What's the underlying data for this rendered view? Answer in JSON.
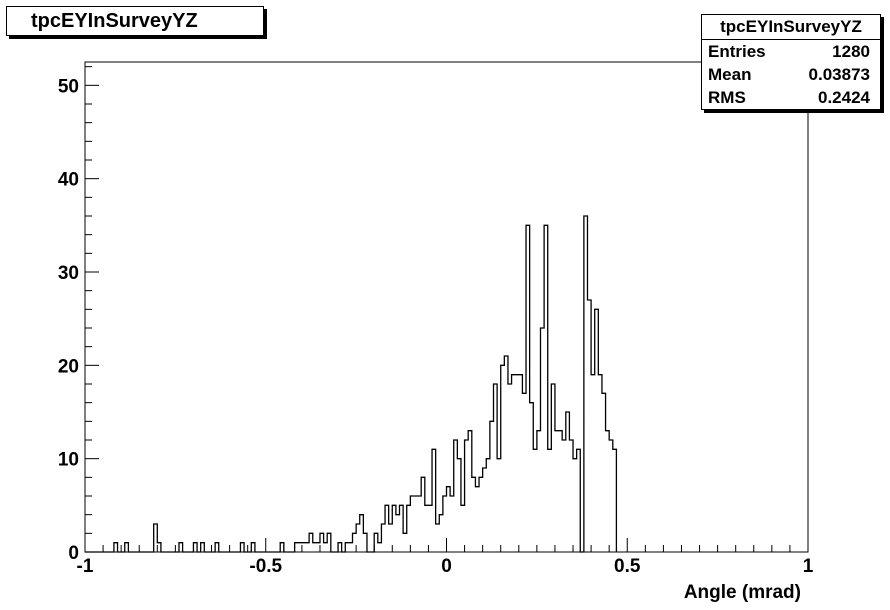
{
  "title": "tpcEYInSurveyYZ",
  "stats": {
    "name": "tpcEYInSurveyYZ",
    "rows": [
      {
        "label": "Entries",
        "value": "1280"
      },
      {
        "label": "Mean",
        "value": "0.03873"
      },
      {
        "label": "RMS",
        "value": "0.2424"
      }
    ]
  },
  "chart_data": {
    "type": "bar",
    "title": "tpcEYInSurveyYZ",
    "xlabel": "Angle (mrad)",
    "ylabel": "",
    "xlim": [
      -1,
      1
    ],
    "ylim": [
      0,
      52.5
    ],
    "x_ticks": [
      -1,
      -0.5,
      0,
      0.5,
      1
    ],
    "x_tick_labels": [
      "-1",
      "-0.5",
      "0",
      "0.5",
      "1"
    ],
    "y_ticks": [
      0,
      10,
      20,
      30,
      40,
      50
    ],
    "y_tick_labels": [
      "0",
      "10",
      "20",
      "30",
      "40",
      "50"
    ],
    "grid": false,
    "legend": "none",
    "bin_width": 0.01,
    "bin_edges_start": -1,
    "values": [
      0,
      0,
      0,
      0,
      0,
      0,
      0,
      0,
      1,
      0,
      0,
      1,
      0,
      0,
      0,
      0,
      0,
      0,
      0,
      3,
      1,
      0,
      0,
      0,
      0,
      0,
      1,
      0,
      0,
      0,
      1,
      0,
      1,
      0,
      0,
      0,
      1,
      0,
      0,
      0,
      0,
      0,
      0,
      1,
      0,
      0,
      1,
      0,
      0,
      0,
      0,
      0,
      0,
      0,
      1,
      0,
      0,
      0,
      1,
      1,
      1,
      1,
      2,
      1,
      1,
      2,
      1,
      2,
      0,
      0,
      1,
      0,
      1,
      1,
      2,
      3,
      4,
      2,
      0,
      0,
      2,
      1,
      3,
      5,
      3,
      5,
      4,
      5,
      2,
      5,
      6,
      6,
      6,
      8,
      5,
      5,
      11,
      3,
      4,
      6,
      7,
      6,
      12,
      10,
      5,
      12,
      13,
      8,
      7,
      8,
      9,
      10,
      14,
      18,
      10,
      20,
      21,
      18,
      19,
      19,
      19,
      17,
      35,
      16,
      11,
      13,
      24,
      35,
      11,
      18,
      13,
      13,
      12,
      15,
      12,
      10,
      11,
      0,
      36,
      27,
      19,
      26,
      19,
      17,
      13,
      12,
      11
    ]
  }
}
